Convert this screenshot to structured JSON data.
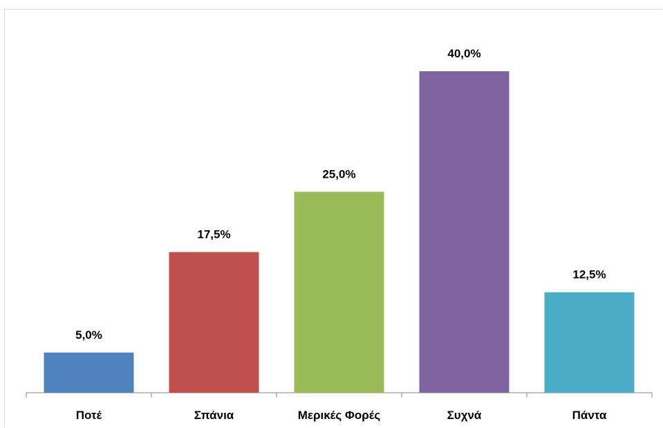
{
  "chart_data": {
    "type": "bar",
    "categories": [
      "Ποτέ",
      "Σπάνια",
      "Μερικές Φορές",
      "Συχνά",
      "Πάντα"
    ],
    "values": [
      5.0,
      17.5,
      25.0,
      40.0,
      12.5
    ],
    "value_labels": [
      "5,0%",
      "17,5%",
      "25,0%",
      "40,0%",
      "12,5%"
    ],
    "colors": [
      "#4F81BD",
      "#C0504D",
      "#9BBB59",
      "#8064A2",
      "#4BACC6"
    ],
    "unit": "%",
    "ylim": [
      0,
      45
    ],
    "grid": false,
    "legend": "none"
  }
}
